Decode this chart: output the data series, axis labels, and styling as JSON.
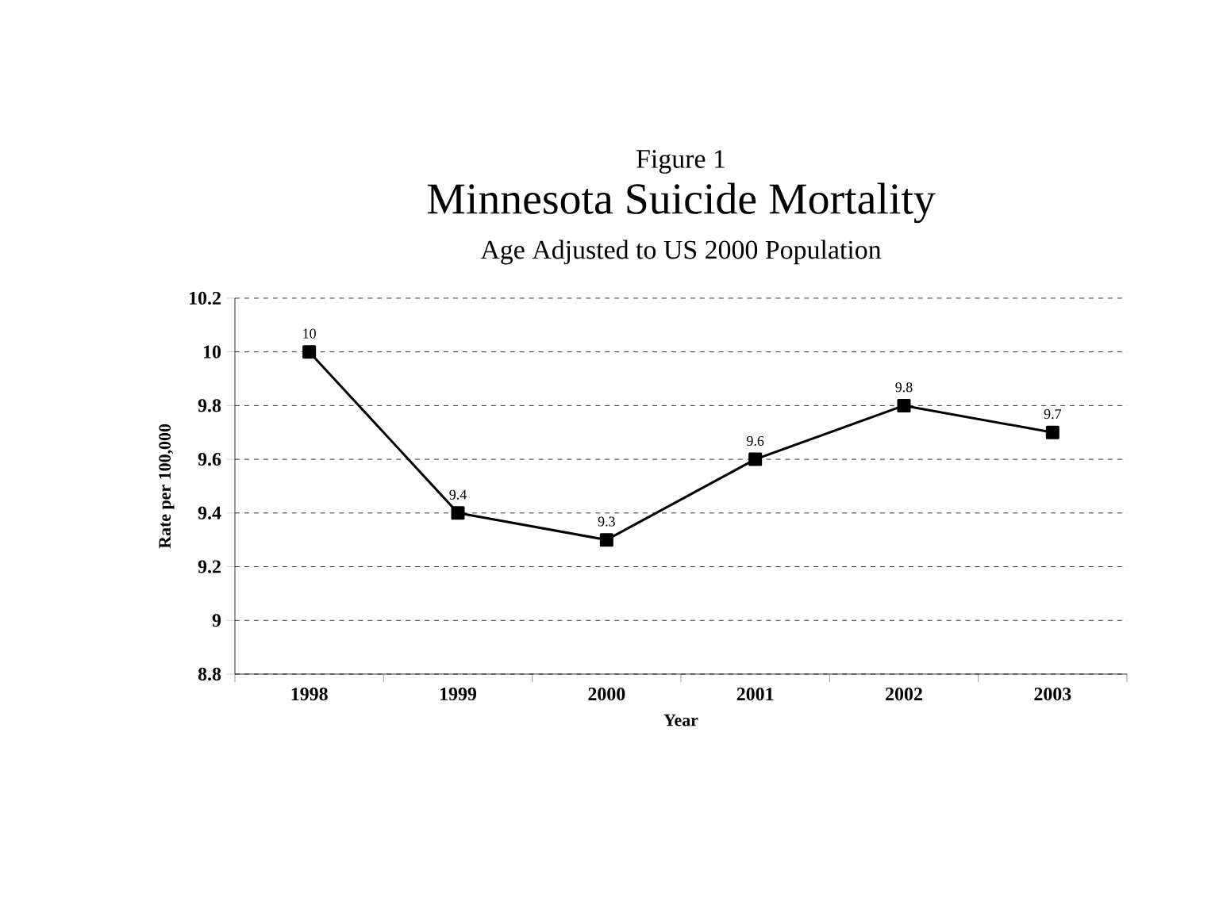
{
  "chart_data": {
    "type": "line",
    "title": "Minnesota Suicide Mortality",
    "subtitle": "Age Adjusted to US 2000 Population",
    "annotations": [
      "Figure 1"
    ],
    "xlabel": "Year",
    "ylabel": "Rate per 100,000",
    "categories": [
      "1998",
      "1999",
      "2000",
      "2001",
      "2002",
      "2003"
    ],
    "values": [
      10,
      9.4,
      9.3,
      9.6,
      9.8,
      9.7
    ],
    "color": "#000000",
    "ylim": [
      8.8,
      10.2
    ],
    "yticks": [
      8.8,
      9,
      9.2,
      9.4,
      9.6,
      9.8,
      10,
      10.2
    ],
    "grid": "y",
    "marker": "square",
    "line_style": "solid",
    "data_labels": true
  }
}
